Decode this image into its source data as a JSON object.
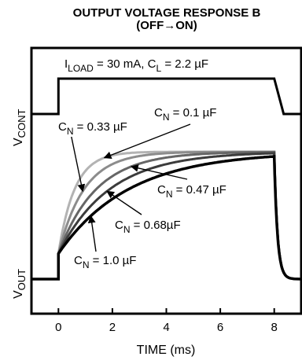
{
  "chart_data": {
    "type": "line",
    "title_line1": "OUTPUT VOLTAGE RESPONSE B",
    "title_line2": "(OFF→ON)",
    "xlabel": "TIME (ms)",
    "ylabel_top": {
      "main": "V",
      "sub": "CONT"
    },
    "ylabel_bottom": {
      "main": "V",
      "sub": "OUT"
    },
    "xlim": [
      -1,
      9
    ],
    "x_ticks": [
      0,
      2,
      4,
      6,
      8
    ],
    "grid": false,
    "condition": {
      "i_main": "I",
      "i_sub": "LOAD",
      "i_val": " = 30 mA, C",
      "c_sub": "L",
      "c_val": " = 2.2 µF"
    },
    "vcont": {
      "name": "V_CONT",
      "x": [
        -1,
        0,
        0,
        8,
        8.35,
        9
      ],
      "level": [
        0,
        0,
        1,
        1,
        0,
        0
      ]
    },
    "vout": {
      "start_time_ms": 0,
      "off_time_ms": 8,
      "initial_level": 0,
      "step_level": 0.2,
      "final_level": 1
    },
    "series": [
      {
        "label_main": "C",
        "label_sub": "N",
        "label_val": " = 0.1 µF",
        "time_constant_ms": 0.6,
        "color": "#b3b3b3"
      },
      {
        "label_main": "C",
        "label_sub": "N",
        "label_val": " = 0.33 µF",
        "time_constant_ms": 0.95,
        "color": "#8c8c8c"
      },
      {
        "label_main": "C",
        "label_sub": "N",
        "label_val": " = 0.47 µF",
        "time_constant_ms": 1.4,
        "color": "#666666"
      },
      {
        "label_main": "C",
        "label_sub": "N",
        "label_val": " = 0.68µF",
        "time_constant_ms": 1.9,
        "color": "#3c3c3c"
      },
      {
        "label_main": "C",
        "label_sub": "N",
        "label_val": " = 1.0 µF",
        "time_constant_ms": 2.6,
        "color": "#000000"
      }
    ]
  }
}
